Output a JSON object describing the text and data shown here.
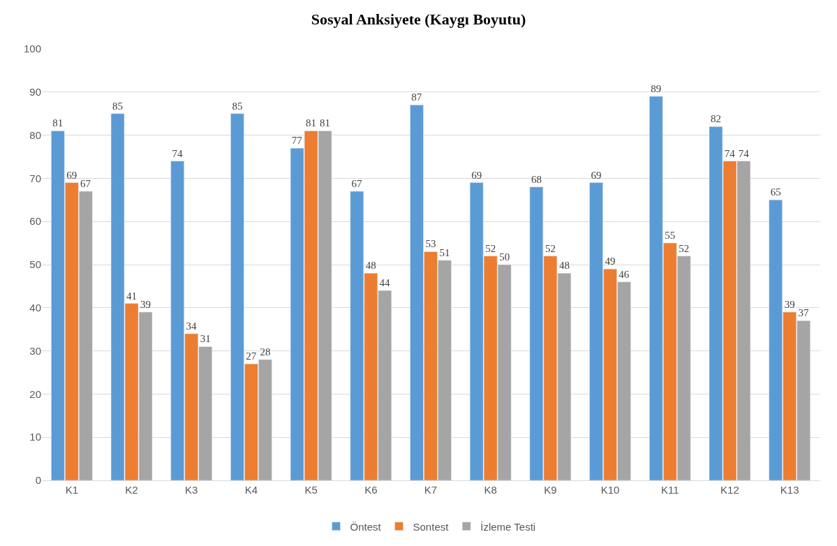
{
  "chart_data": {
    "type": "bar",
    "title": "Sosyal Anksiyete (Kaygı Boyutu)",
    "categories": [
      "K1",
      "K2",
      "K3",
      "K4",
      "K5",
      "K6",
      "K7",
      "K8",
      "K9",
      "K10",
      "K11",
      "K12",
      "K13"
    ],
    "series": [
      {
        "name": "Öntest",
        "color": "#5b9bd5",
        "values": [
          81,
          85,
          74,
          85,
          77,
          67,
          87,
          69,
          68,
          69,
          89,
          82,
          65
        ]
      },
      {
        "name": "Sontest",
        "color": "#ed7d31",
        "values": [
          69,
          41,
          34,
          27,
          81,
          48,
          53,
          52,
          52,
          49,
          55,
          74,
          39
        ]
      },
      {
        "name": "İzleme Testi",
        "color": "#a5a5a5",
        "values": [
          67,
          39,
          31,
          28,
          81,
          44,
          51,
          50,
          48,
          46,
          52,
          74,
          37
        ]
      }
    ],
    "ylim": [
      0,
      100
    ],
    "yticks": [
      0,
      10,
      20,
      30,
      40,
      50,
      60,
      70,
      80,
      90,
      100
    ],
    "grid": "y",
    "legend": "bottom",
    "data_labels": true
  }
}
